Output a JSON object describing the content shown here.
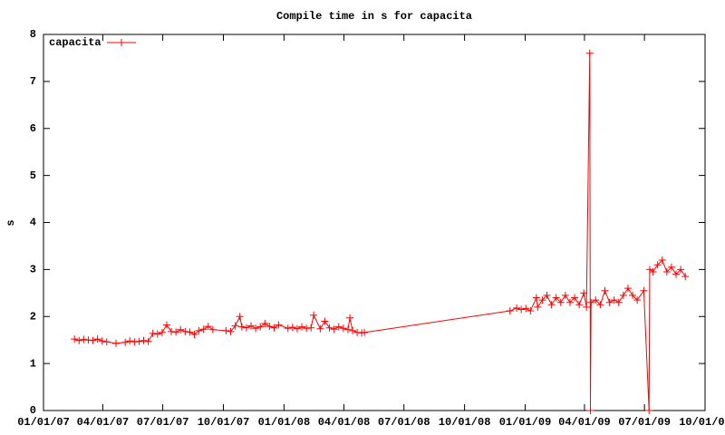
{
  "chart_data": {
    "type": "line",
    "title": "Compile time in s for capacita",
    "ylabel": "s",
    "x": [
      "2007-02-17",
      "2007-02-24",
      "2007-03-03",
      "2007-03-10",
      "2007-03-17",
      "2007-03-24",
      "2007-03-31",
      "2007-04-07",
      "2007-04-21",
      "2007-05-05",
      "2007-05-12",
      "2007-05-19",
      "2007-05-26",
      "2007-06-02",
      "2007-06-09",
      "2007-06-16",
      "2007-06-23",
      "2007-06-30",
      "2007-07-07",
      "2007-07-14",
      "2007-07-21",
      "2007-07-28",
      "2007-08-04",
      "2007-08-11",
      "2007-08-18",
      "2007-08-25",
      "2007-09-01",
      "2007-09-08",
      "2007-09-15",
      "2007-10-05",
      "2007-10-12",
      "2007-10-19",
      "2007-10-26",
      "2007-10-29",
      "2007-11-05",
      "2007-11-12",
      "2007-11-19",
      "2007-11-26",
      "2007-12-03",
      "2007-12-10",
      "2007-12-17",
      "2007-12-24",
      "2008-01-07",
      "2008-01-14",
      "2008-01-21",
      "2008-01-28",
      "2008-02-04",
      "2008-02-11",
      "2008-02-15",
      "2008-02-25",
      "2008-03-03",
      "2008-03-10",
      "2008-03-17",
      "2008-03-24",
      "2008-03-31",
      "2008-04-07",
      "2008-04-10",
      "2008-04-14",
      "2008-04-21",
      "2008-04-28",
      "2008-05-02",
      "2008-12-09",
      "2008-12-19",
      "2008-12-26",
      "2009-01-02",
      "2009-01-09",
      "2009-01-18",
      "2009-01-20",
      "2009-01-27",
      "2009-02-03",
      "2009-02-10",
      "2009-02-17",
      "2009-02-24",
      "2009-03-03",
      "2009-03-10",
      "2009-03-17",
      "2009-03-24",
      "2009-03-31",
      "2009-04-04",
      "2009-04-09",
      "2009-04-10",
      "2009-04-11",
      "2009-04-18",
      "2009-04-25",
      "2009-05-02",
      "2009-05-09",
      "2009-05-16",
      "2009-05-23",
      "2009-05-30",
      "2009-06-06",
      "2009-06-13",
      "2009-06-20",
      "2009-06-30",
      "2009-07-08",
      "2009-07-09",
      "2009-07-14",
      "2009-07-21",
      "2009-07-28",
      "2009-08-04",
      "2009-08-11",
      "2009-08-18",
      "2009-08-25",
      "2009-09-01"
    ],
    "series": [
      {
        "name": "capacita",
        "color": "#ff0000",
        "values": [
          1.52,
          1.49,
          1.51,
          1.5,
          1.49,
          1.52,
          1.48,
          1.46,
          1.43,
          1.45,
          1.48,
          1.46,
          1.47,
          1.49,
          1.47,
          1.64,
          1.63,
          1.66,
          1.82,
          1.68,
          1.67,
          1.72,
          1.68,
          1.67,
          1.62,
          1.7,
          1.73,
          1.79,
          1.72,
          1.7,
          1.68,
          1.8,
          2.0,
          1.78,
          1.76,
          1.8,
          1.75,
          1.78,
          1.85,
          1.79,
          1.76,
          1.82,
          1.75,
          1.77,
          1.74,
          1.78,
          1.75,
          1.76,
          2.03,
          1.74,
          1.9,
          1.76,
          1.73,
          1.78,
          1.75,
          1.72,
          1.97,
          1.7,
          1.66,
          1.65,
          1.66,
          2.12,
          2.18,
          2.15,
          2.17,
          2.12,
          2.4,
          2.2,
          2.35,
          2.45,
          2.25,
          2.4,
          2.3,
          2.45,
          2.3,
          2.4,
          2.25,
          2.5,
          2.2,
          7.6,
          0,
          2.3,
          2.35,
          2.25,
          2.55,
          2.3,
          2.35,
          2.3,
          2.45,
          2.6,
          2.45,
          2.35,
          2.55,
          0,
          3.0,
          2.95,
          3.1,
          3.2,
          2.95,
          3.05,
          2.9,
          3.0,
          2.85
        ]
      }
    ],
    "xlim": [
      "2007-01-01",
      "2009-10-01"
    ],
    "xticks": [
      {
        "value": "2007-01-01",
        "label": "01/01/07"
      },
      {
        "value": "2007-04-01",
        "label": "04/01/07"
      },
      {
        "value": "2007-07-01",
        "label": "07/01/07"
      },
      {
        "value": "2007-10-01",
        "label": "10/01/07"
      },
      {
        "value": "2008-01-01",
        "label": "01/01/08"
      },
      {
        "value": "2008-04-01",
        "label": "04/01/08"
      },
      {
        "value": "2008-07-01",
        "label": "07/01/08"
      },
      {
        "value": "2008-10-01",
        "label": "10/01/08"
      },
      {
        "value": "2009-01-01",
        "label": "01/01/09"
      },
      {
        "value": "2009-04-01",
        "label": "04/01/09"
      },
      {
        "value": "2009-07-01",
        "label": "07/01/09"
      },
      {
        "value": "2009-10-01",
        "label": "10/01/09"
      }
    ],
    "ylim": [
      0,
      8
    ],
    "yticks": [
      0,
      1,
      2,
      3,
      4,
      5,
      6,
      7,
      8
    ],
    "legend": "top-left"
  }
}
